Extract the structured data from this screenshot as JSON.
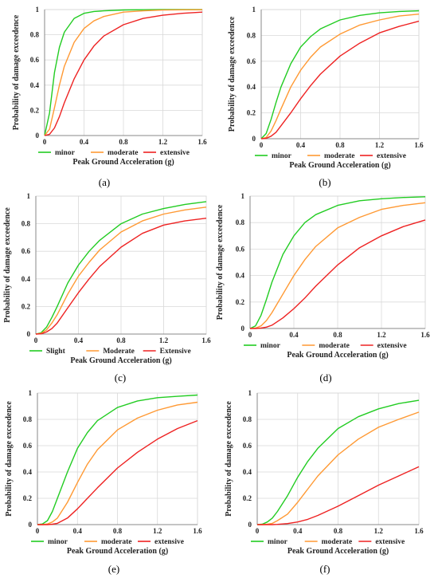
{
  "colors": {
    "minor": "#22cc22",
    "moderate": "#ff9933",
    "extensive": "#ee2222"
  },
  "chart_data": [
    {
      "type": "line",
      "label": "(a)",
      "xlabel": "Peak Ground Acceleration (g)",
      "ylabel": "Probability of damage exceedence",
      "xlim": [
        0,
        1.6
      ],
      "ylim": [
        0,
        1
      ],
      "xticks": [
        "0",
        "0.4",
        "0.8",
        "1.2",
        "1.6"
      ],
      "yticks": [
        "0",
        "0.2",
        "0.4",
        "0.6",
        "0.8",
        "1"
      ],
      "grid": true,
      "legend": "bottom",
      "series": [
        {
          "name": "minor",
          "color": "#22cc22",
          "x": [
            0,
            0.05,
            0.1,
            0.15,
            0.2,
            0.3,
            0.4,
            0.5,
            0.6,
            0.8,
            1.0,
            1.2,
            1.4,
            1.6
          ],
          "y": [
            0,
            0.18,
            0.5,
            0.7,
            0.82,
            0.93,
            0.97,
            0.985,
            0.99,
            0.997,
            0.999,
            1,
            1,
            1
          ]
        },
        {
          "name": "moderate",
          "color": "#ff9933",
          "x": [
            0,
            0.05,
            0.1,
            0.15,
            0.2,
            0.3,
            0.4,
            0.5,
            0.6,
            0.8,
            1.0,
            1.2,
            1.4,
            1.6
          ],
          "y": [
            0,
            0.05,
            0.22,
            0.4,
            0.55,
            0.74,
            0.85,
            0.91,
            0.945,
            0.98,
            0.99,
            0.996,
            0.998,
            0.999
          ]
        },
        {
          "name": "extensive",
          "color": "#ee2222",
          "x": [
            0,
            0.05,
            0.1,
            0.15,
            0.2,
            0.3,
            0.4,
            0.5,
            0.6,
            0.8,
            1.0,
            1.2,
            1.4,
            1.6
          ],
          "y": [
            0,
            0.01,
            0.06,
            0.15,
            0.26,
            0.45,
            0.6,
            0.71,
            0.79,
            0.88,
            0.93,
            0.955,
            0.97,
            0.98
          ]
        }
      ]
    },
    {
      "type": "line",
      "label": "(b)",
      "xlabel": "Peak Ground Acceleration (g)",
      "ylabel": "Probability of damage exceedence",
      "xlim": [
        0,
        1.6
      ],
      "ylim": [
        0,
        1
      ],
      "xticks": [
        "0",
        "0.4",
        "0.8",
        "1.2",
        "1.6"
      ],
      "yticks": [
        "0",
        "0.2",
        "0.4",
        "0.6",
        "0.8",
        "1"
      ],
      "grid": true,
      "legend": "bottom",
      "series": [
        {
          "name": "minor",
          "color": "#22cc22",
          "x": [
            0,
            0.05,
            0.1,
            0.15,
            0.2,
            0.3,
            0.4,
            0.5,
            0.6,
            0.8,
            1.0,
            1.2,
            1.4,
            1.6
          ],
          "y": [
            0,
            0.04,
            0.15,
            0.28,
            0.4,
            0.58,
            0.71,
            0.79,
            0.85,
            0.92,
            0.955,
            0.975,
            0.985,
            0.99
          ]
        },
        {
          "name": "moderate",
          "color": "#ff9933",
          "x": [
            0,
            0.05,
            0.1,
            0.15,
            0.2,
            0.3,
            0.4,
            0.5,
            0.6,
            0.8,
            1.0,
            1.2,
            1.4,
            1.6
          ],
          "y": [
            0,
            0.01,
            0.06,
            0.14,
            0.23,
            0.4,
            0.53,
            0.63,
            0.71,
            0.81,
            0.88,
            0.92,
            0.95,
            0.965
          ]
        },
        {
          "name": "extensive",
          "color": "#ee2222",
          "x": [
            0,
            0.05,
            0.1,
            0.15,
            0.2,
            0.3,
            0.4,
            0.5,
            0.6,
            0.8,
            1.0,
            1.2,
            1.4,
            1.6
          ],
          "y": [
            0,
            0.003,
            0.02,
            0.05,
            0.1,
            0.2,
            0.31,
            0.41,
            0.5,
            0.64,
            0.74,
            0.82,
            0.87,
            0.91
          ]
        }
      ]
    },
    {
      "type": "line",
      "label": "(c)",
      "xlabel": "Peak Ground Acceleration (g)",
      "ylabel": "Probability of damage exceedence",
      "xlim": [
        0,
        1.6
      ],
      "ylim": [
        0,
        1
      ],
      "xticks": [
        "0",
        "0.4",
        "0.8",
        "1.2",
        "1.6"
      ],
      "yticks": [
        "0",
        "0.2",
        "0.4",
        "0.6",
        "0.8",
        "1"
      ],
      "grid": true,
      "legend": "bottom",
      "series": [
        {
          "name": "Slight",
          "color": "#22cc22",
          "x": [
            0,
            0.05,
            0.1,
            0.15,
            0.2,
            0.3,
            0.4,
            0.5,
            0.6,
            0.8,
            1.0,
            1.2,
            1.4,
            1.6
          ],
          "y": [
            0,
            0.01,
            0.05,
            0.12,
            0.2,
            0.37,
            0.5,
            0.6,
            0.68,
            0.8,
            0.87,
            0.91,
            0.94,
            0.96
          ]
        },
        {
          "name": "Moderate",
          "color": "#ff9933",
          "x": [
            0,
            0.05,
            0.1,
            0.15,
            0.2,
            0.3,
            0.4,
            0.5,
            0.6,
            0.8,
            1.0,
            1.2,
            1.4,
            1.6
          ],
          "y": [
            0,
            0.005,
            0.03,
            0.08,
            0.14,
            0.29,
            0.42,
            0.52,
            0.61,
            0.74,
            0.82,
            0.87,
            0.9,
            0.92
          ]
        },
        {
          "name": "Extensive",
          "color": "#ee2222",
          "x": [
            0,
            0.05,
            0.1,
            0.15,
            0.2,
            0.3,
            0.4,
            0.5,
            0.6,
            0.8,
            1.0,
            1.2,
            1.4,
            1.6
          ],
          "y": [
            0,
            0.002,
            0.015,
            0.04,
            0.08,
            0.19,
            0.3,
            0.4,
            0.49,
            0.63,
            0.73,
            0.79,
            0.82,
            0.84
          ]
        }
      ]
    },
    {
      "type": "line",
      "label": "(d)",
      "xlabel": "Peak Ground Acceleration (g)",
      "ylabel": "Probability of damage exceedence",
      "xlim": [
        0,
        1.6
      ],
      "ylim": [
        0,
        1
      ],
      "xticks": [
        "0",
        "0.4",
        "0.8",
        "1.2",
        "1.6"
      ],
      "yticks": [
        "0",
        "0.2",
        "0.4",
        "0.6",
        "0.8",
        "1"
      ],
      "grid": true,
      "legend": "bottom",
      "series": [
        {
          "name": "minor",
          "color": "#22cc22",
          "x": [
            0,
            0.05,
            0.1,
            0.15,
            0.2,
            0.3,
            0.4,
            0.5,
            0.6,
            0.8,
            1.0,
            1.2,
            1.4,
            1.6
          ],
          "y": [
            0,
            0.02,
            0.1,
            0.22,
            0.35,
            0.56,
            0.7,
            0.8,
            0.86,
            0.93,
            0.965,
            0.98,
            0.99,
            0.995
          ]
        },
        {
          "name": "moderate",
          "color": "#ff9933",
          "x": [
            0,
            0.05,
            0.1,
            0.15,
            0.2,
            0.3,
            0.4,
            0.5,
            0.6,
            0.8,
            1.0,
            1.2,
            1.4,
            1.6
          ],
          "y": [
            0,
            0.003,
            0.02,
            0.06,
            0.12,
            0.26,
            0.4,
            0.52,
            0.62,
            0.76,
            0.84,
            0.9,
            0.93,
            0.95
          ]
        },
        {
          "name": "extensive",
          "color": "#ee2222",
          "x": [
            0,
            0.05,
            0.1,
            0.15,
            0.2,
            0.3,
            0.4,
            0.5,
            0.6,
            0.8,
            1.0,
            1.2,
            1.4,
            1.6
          ],
          "y": [
            0,
            0,
            0.003,
            0.01,
            0.025,
            0.08,
            0.15,
            0.23,
            0.32,
            0.48,
            0.61,
            0.7,
            0.77,
            0.82
          ]
        }
      ]
    },
    {
      "type": "line",
      "label": "(e)",
      "xlabel": "Peak Ground Acceleration (g)",
      "ylabel": "Probability of damage exceedence",
      "xlim": [
        0,
        1.6
      ],
      "ylim": [
        0,
        1
      ],
      "xticks": [
        "0",
        "0.4",
        "0.8",
        "1.2",
        "1.6"
      ],
      "yticks": [
        "0",
        "0.2",
        "0.4",
        "0.6",
        "0.8",
        "1"
      ],
      "grid": true,
      "legend": "bottom",
      "series": [
        {
          "name": "minor",
          "color": "#22cc22",
          "x": [
            0,
            0.05,
            0.1,
            0.15,
            0.2,
            0.3,
            0.4,
            0.5,
            0.6,
            0.8,
            1.0,
            1.2,
            1.4,
            1.6
          ],
          "y": [
            0,
            0.005,
            0.03,
            0.1,
            0.2,
            0.4,
            0.58,
            0.7,
            0.79,
            0.89,
            0.94,
            0.965,
            0.975,
            0.985
          ]
        },
        {
          "name": "moderate",
          "color": "#ff9933",
          "x": [
            0,
            0.05,
            0.1,
            0.15,
            0.2,
            0.3,
            0.4,
            0.5,
            0.6,
            0.8,
            1.0,
            1.2,
            1.4,
            1.6
          ],
          "y": [
            0,
            0,
            0.005,
            0.02,
            0.05,
            0.17,
            0.32,
            0.46,
            0.57,
            0.72,
            0.81,
            0.87,
            0.91,
            0.93
          ]
        },
        {
          "name": "extensive",
          "color": "#ee2222",
          "x": [
            0,
            0.05,
            0.1,
            0.15,
            0.2,
            0.3,
            0.4,
            0.5,
            0.6,
            0.8,
            1.0,
            1.2,
            1.4,
            1.6
          ],
          "y": [
            0,
            0,
            0,
            0.003,
            0.01,
            0.05,
            0.12,
            0.2,
            0.28,
            0.43,
            0.55,
            0.65,
            0.73,
            0.79
          ]
        }
      ]
    },
    {
      "type": "line",
      "label": "(f)",
      "xlabel": "Peak Ground Acceleration (g)",
      "ylabel": "Probability of damage exceedence",
      "xlim": [
        0,
        1.6
      ],
      "ylim": [
        0,
        1
      ],
      "xticks": [
        "0",
        "0.4",
        "0.8",
        "1.2",
        "1.6"
      ],
      "yticks": [
        "0",
        "0.2",
        "0.4",
        "0.6",
        "0.8",
        "1"
      ],
      "grid": true,
      "legend": "bottom",
      "series": [
        {
          "name": "minor",
          "color": "#22cc22",
          "x": [
            0,
            0.05,
            0.1,
            0.15,
            0.2,
            0.3,
            0.4,
            0.5,
            0.6,
            0.8,
            1.0,
            1.2,
            1.4,
            1.6
          ],
          "y": [
            0,
            0.003,
            0.02,
            0.05,
            0.1,
            0.22,
            0.36,
            0.48,
            0.58,
            0.73,
            0.82,
            0.88,
            0.92,
            0.945
          ]
        },
        {
          "name": "moderate",
          "color": "#ff9933",
          "x": [
            0,
            0.05,
            0.1,
            0.15,
            0.2,
            0.3,
            0.4,
            0.5,
            0.6,
            0.8,
            1.0,
            1.2,
            1.4,
            1.6
          ],
          "y": [
            0,
            0,
            0.003,
            0.01,
            0.03,
            0.08,
            0.17,
            0.27,
            0.37,
            0.53,
            0.65,
            0.74,
            0.8,
            0.855
          ]
        },
        {
          "name": "extensive",
          "color": "#ee2222",
          "x": [
            0,
            0.05,
            0.1,
            0.15,
            0.2,
            0.3,
            0.4,
            0.5,
            0.6,
            0.8,
            1.0,
            1.2,
            1.4,
            1.6
          ],
          "y": [
            0,
            0,
            0,
            0,
            0.002,
            0.008,
            0.02,
            0.04,
            0.07,
            0.14,
            0.22,
            0.3,
            0.37,
            0.44
          ]
        }
      ]
    }
  ]
}
